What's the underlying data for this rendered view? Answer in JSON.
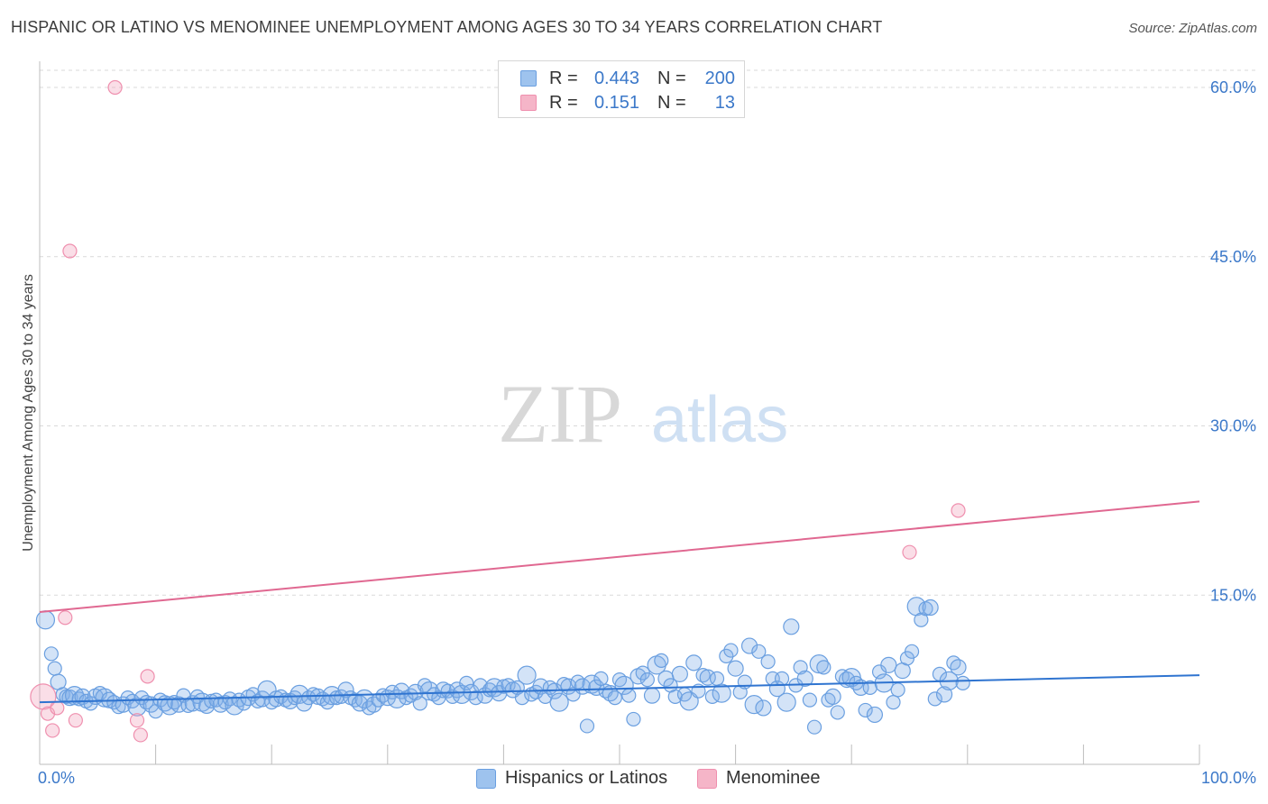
{
  "header": {
    "title": "HISPANIC OR LATINO VS MENOMINEE UNEMPLOYMENT AMONG AGES 30 TO 34 YEARS CORRELATION CHART",
    "source": "Source: ZipAtlas.com"
  },
  "watermark": {
    "zip": "ZIP",
    "atlas": "atlas"
  },
  "legend": {
    "rows": [
      {
        "r_label": "R =",
        "r_value": "0.443",
        "n_label": "N =",
        "n_value": "200",
        "color": "#9ec3ee"
      },
      {
        "r_label": "R =",
        "r_value": "0.151",
        "n_label": "N =",
        "n_value": "13",
        "color": "#f5b5c8"
      }
    ]
  },
  "bottom_legend": {
    "items": [
      {
        "label": "Hispanics or Latinos",
        "color": "#9ec3ee"
      },
      {
        "label": "Menominee",
        "color": "#f5b5c8"
      }
    ]
  },
  "colors": {
    "blue_fill": "rgba(130,176,232,0.35)",
    "blue_stroke": "#6a9fe0",
    "blue_line": "#2f74d0",
    "pink_fill": "rgba(242,160,185,0.35)",
    "pink_stroke": "#ef8fae",
    "pink_line": "#e06891",
    "grid": "#d9d9d9",
    "tick_text": "#3b78c9"
  },
  "chart_data": {
    "type": "scatter",
    "title": "HISPANIC OR LATINO VS MENOMINEE UNEMPLOYMENT AMONG AGES 30 TO 34 YEARS CORRELATION CHART",
    "xlabel": "",
    "ylabel": "Unemployment Among Ages 30 to 34 years",
    "xlim": [
      0,
      100
    ],
    "ylim": [
      0,
      63
    ],
    "x_tick_labels": [
      "0.0%",
      "100.0%"
    ],
    "y_ticks": [
      15,
      30,
      45,
      60
    ],
    "y_tick_labels": [
      "15.0%",
      "30.0%",
      "45.0%",
      "60.0%"
    ],
    "grid": true,
    "legend": "top-center",
    "series": [
      {
        "name": "Hispanics or Latinos",
        "R": 0.443,
        "N": 200,
        "trend": {
          "x": [
            0,
            100
          ],
          "y": [
            5.5,
            7.9
          ]
        },
        "points": [
          [
            0.5,
            12.8
          ],
          [
            1.0,
            9.8
          ],
          [
            1.3,
            8.5
          ],
          [
            1.6,
            7.3
          ],
          [
            2.0,
            6.2
          ],
          [
            2.3,
            6.0
          ],
          [
            2.6,
            5.9
          ],
          [
            3.0,
            6.1
          ],
          [
            3.4,
            5.8
          ],
          [
            3.7,
            6.0
          ],
          [
            4.0,
            5.6
          ],
          [
            4.4,
            5.4
          ],
          [
            4.8,
            6.0
          ],
          [
            5.2,
            6.3
          ],
          [
            5.6,
            5.9
          ],
          [
            6.0,
            5.7
          ],
          [
            6.4,
            5.5
          ],
          [
            6.8,
            5.1
          ],
          [
            7.2,
            5.3
          ],
          [
            7.6,
            5.9
          ],
          [
            8.0,
            5.6
          ],
          [
            8.4,
            5.1
          ],
          [
            8.8,
            5.9
          ],
          [
            9.2,
            5.5
          ],
          [
            9.6,
            5.3
          ],
          [
            10.0,
            4.7
          ],
          [
            10.4,
            5.7
          ],
          [
            10.8,
            5.4
          ],
          [
            11.2,
            5.2
          ],
          [
            11.6,
            5.5
          ],
          [
            12.0,
            5.3
          ],
          [
            12.4,
            6.1
          ],
          [
            12.8,
            5.2
          ],
          [
            13.2,
            5.4
          ],
          [
            13.6,
            6.0
          ],
          [
            14.0,
            5.5
          ],
          [
            14.4,
            5.2
          ],
          [
            14.8,
            5.6
          ],
          [
            15.2,
            5.7
          ],
          [
            15.6,
            5.3
          ],
          [
            16.0,
            5.5
          ],
          [
            16.4,
            5.8
          ],
          [
            16.8,
            5.2
          ],
          [
            17.2,
            5.7
          ],
          [
            17.6,
            5.4
          ],
          [
            18.0,
            5.9
          ],
          [
            18.4,
            6.2
          ],
          [
            18.8,
            5.6
          ],
          [
            19.2,
            5.8
          ],
          [
            19.6,
            6.6
          ],
          [
            20.0,
            5.5
          ],
          [
            20.4,
            5.8
          ],
          [
            20.8,
            6.0
          ],
          [
            21.2,
            5.7
          ],
          [
            21.6,
            5.6
          ],
          [
            22.0,
            5.9
          ],
          [
            22.4,
            6.2
          ],
          [
            22.8,
            5.4
          ],
          [
            23.2,
            5.9
          ],
          [
            23.6,
            6.2
          ],
          [
            24.0,
            6.0
          ],
          [
            24.4,
            5.8
          ],
          [
            24.8,
            5.5
          ],
          [
            25.2,
            6.1
          ],
          [
            25.6,
            5.9
          ],
          [
            26.0,
            6.0
          ],
          [
            26.4,
            6.6
          ],
          [
            26.8,
            5.9
          ],
          [
            27.2,
            5.7
          ],
          [
            27.6,
            5.4
          ],
          [
            28.0,
            5.8
          ],
          [
            28.4,
            5.0
          ],
          [
            28.8,
            5.3
          ],
          [
            29.2,
            5.7
          ],
          [
            29.6,
            6.1
          ],
          [
            30.0,
            5.9
          ],
          [
            30.4,
            6.4
          ],
          [
            30.8,
            5.8
          ],
          [
            31.2,
            6.5
          ],
          [
            31.6,
            5.9
          ],
          [
            32.0,
            6.1
          ],
          [
            32.4,
            6.4
          ],
          [
            32.8,
            5.4
          ],
          [
            33.2,
            7.0
          ],
          [
            33.6,
            6.5
          ],
          [
            34.0,
            6.2
          ],
          [
            34.4,
            5.9
          ],
          [
            34.8,
            6.6
          ],
          [
            35.2,
            6.5
          ],
          [
            35.6,
            6.0
          ],
          [
            36.0,
            6.6
          ],
          [
            36.4,
            6.2
          ],
          [
            36.8,
            7.2
          ],
          [
            37.2,
            6.4
          ],
          [
            37.6,
            5.9
          ],
          [
            38.0,
            7.0
          ],
          [
            38.4,
            6.1
          ],
          [
            38.8,
            6.6
          ],
          [
            39.2,
            6.8
          ],
          [
            39.6,
            6.3
          ],
          [
            40.0,
            6.9
          ],
          [
            40.4,
            7.0
          ],
          [
            40.8,
            6.6
          ],
          [
            41.2,
            6.8
          ],
          [
            41.6,
            5.9
          ],
          [
            42.0,
            7.9
          ],
          [
            42.4,
            6.2
          ],
          [
            42.8,
            6.4
          ],
          [
            43.2,
            6.9
          ],
          [
            43.6,
            6.0
          ],
          [
            44.0,
            6.8
          ],
          [
            44.4,
            6.5
          ],
          [
            44.8,
            5.5
          ],
          [
            45.2,
            7.1
          ],
          [
            45.6,
            6.9
          ],
          [
            46.0,
            6.2
          ],
          [
            46.4,
            7.3
          ],
          [
            46.8,
            6.9
          ],
          [
            47.2,
            3.4
          ],
          [
            47.6,
            7.1
          ],
          [
            48.0,
            6.8
          ],
          [
            48.4,
            7.6
          ],
          [
            48.8,
            6.5
          ],
          [
            49.2,
            6.3
          ],
          [
            49.6,
            5.9
          ],
          [
            50.0,
            7.5
          ],
          [
            50.4,
            7.0
          ],
          [
            50.8,
            6.1
          ],
          [
            51.2,
            4.0
          ],
          [
            51.6,
            7.8
          ],
          [
            52.0,
            8.1
          ],
          [
            52.4,
            7.5
          ],
          [
            52.8,
            6.1
          ],
          [
            53.2,
            8.8
          ],
          [
            53.6,
            9.2
          ],
          [
            54.0,
            7.6
          ],
          [
            54.4,
            7.0
          ],
          [
            54.8,
            6.0
          ],
          [
            55.2,
            8.0
          ],
          [
            55.6,
            6.2
          ],
          [
            56.0,
            5.6
          ],
          [
            56.4,
            9.0
          ],
          [
            56.8,
            6.5
          ],
          [
            57.2,
            7.9
          ],
          [
            57.6,
            7.7
          ],
          [
            58.0,
            6.0
          ],
          [
            58.4,
            7.6
          ],
          [
            58.8,
            6.3
          ],
          [
            59.2,
            9.6
          ],
          [
            59.6,
            10.1
          ],
          [
            60.0,
            8.5
          ],
          [
            60.4,
            6.4
          ],
          [
            60.8,
            7.3
          ],
          [
            61.2,
            10.5
          ],
          [
            61.6,
            5.3
          ],
          [
            62.0,
            10.0
          ],
          [
            62.4,
            5.0
          ],
          [
            62.8,
            9.1
          ],
          [
            63.2,
            7.6
          ],
          [
            63.6,
            6.7
          ],
          [
            64.0,
            7.6
          ],
          [
            64.4,
            5.5
          ],
          [
            64.8,
            12.2
          ],
          [
            65.2,
            7.0
          ],
          [
            65.6,
            8.6
          ],
          [
            66.0,
            7.6
          ],
          [
            66.4,
            5.7
          ],
          [
            66.8,
            3.3
          ],
          [
            67.2,
            8.9
          ],
          [
            67.6,
            8.6
          ],
          [
            68.0,
            5.7
          ],
          [
            68.4,
            6.0
          ],
          [
            68.8,
            4.6
          ],
          [
            69.2,
            7.8
          ],
          [
            69.6,
            7.5
          ],
          [
            70.0,
            7.7
          ],
          [
            70.4,
            7.2
          ],
          [
            70.8,
            6.8
          ],
          [
            71.2,
            4.8
          ],
          [
            71.6,
            6.8
          ],
          [
            72.0,
            4.4
          ],
          [
            72.4,
            8.2
          ],
          [
            72.8,
            7.2
          ],
          [
            73.2,
            8.8
          ],
          [
            73.6,
            5.5
          ],
          [
            74.0,
            6.6
          ],
          [
            74.4,
            8.3
          ],
          [
            74.8,
            9.4
          ],
          [
            75.2,
            10.0
          ],
          [
            75.6,
            14.0
          ],
          [
            76.0,
            12.8
          ],
          [
            76.4,
            13.8
          ],
          [
            76.8,
            13.9
          ],
          [
            77.2,
            5.8
          ],
          [
            77.6,
            8.0
          ],
          [
            78.0,
            6.2
          ],
          [
            78.4,
            7.4
          ],
          [
            78.8,
            9.0
          ],
          [
            79.2,
            8.6
          ],
          [
            79.6,
            7.2
          ]
        ]
      },
      {
        "name": "Menominee",
        "R": 0.151,
        "N": 13,
        "trend": {
          "x": [
            0,
            100
          ],
          "y": [
            13.5,
            23.3
          ]
        },
        "points": [
          [
            0.3,
            6.0
          ],
          [
            0.7,
            4.5
          ],
          [
            1.1,
            3.0
          ],
          [
            1.5,
            5.0
          ],
          [
            2.2,
            13.0
          ],
          [
            2.6,
            45.5
          ],
          [
            3.1,
            3.9
          ],
          [
            6.5,
            60.0
          ],
          [
            8.4,
            3.9
          ],
          [
            8.7,
            2.6
          ],
          [
            9.3,
            7.8
          ],
          [
            75.0,
            18.8
          ],
          [
            79.2,
            22.5
          ]
        ]
      }
    ]
  }
}
